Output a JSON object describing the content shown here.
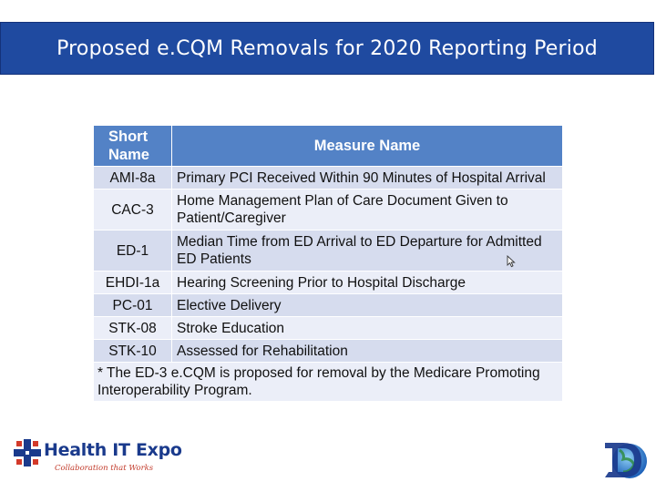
{
  "slide": {
    "title": "Proposed e.CQM Removals for 2020 Reporting Period"
  },
  "table": {
    "headers": {
      "short": "Short Name",
      "measure": "Measure Name"
    },
    "rows": [
      {
        "short": "AMI-8a",
        "measure": "Primary PCI Received Within 90 Minutes of Hospital Arrival",
        "tall": false
      },
      {
        "short": "CAC-3",
        "measure": "Home Management Plan of Care Document Given to Patient/Caregiver",
        "tall": true
      },
      {
        "short": "ED-1",
        "measure": "Median Time from ED Arrival to ED Departure for Admitted ED Patients",
        "tall": true
      },
      {
        "short": "EHDI-1a",
        "measure": "Hearing Screening Prior to Hospital Discharge",
        "tall": false
      },
      {
        "short": "PC-01",
        "measure": "Elective Delivery",
        "tall": false
      },
      {
        "short": "STK-08",
        "measure": "Stroke Education",
        "tall": false
      },
      {
        "short": "STK-10",
        "measure": "Assessed for Rehabilitation",
        "tall": false
      }
    ],
    "footnote": "* The ED-3 e.CQM is proposed for removal by the Medicare Promoting Interoperability Program."
  },
  "logos": {
    "left_name": "Health IT Expo",
    "left_tagline": "Collaboration that Works",
    "right_icon": "d-globe-logo-icon"
  },
  "colors": {
    "title_bar": "#1f4aa0",
    "header": "#5382c6",
    "row_dark": "#d6dcee",
    "row_light": "#ebeef8"
  }
}
